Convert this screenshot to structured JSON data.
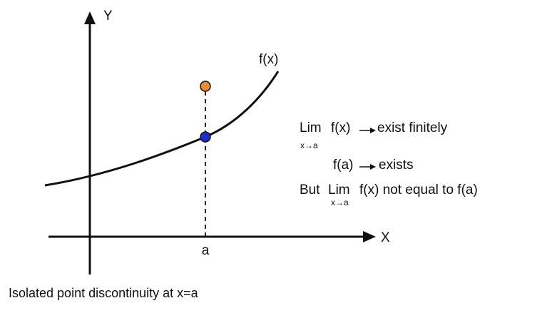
{
  "labels": {
    "y_axis": "Y",
    "x_axis": "X",
    "curve": "f(x)",
    "point": "a"
  },
  "notes": {
    "line1": {
      "lim": "Lim",
      "func": "f(x)",
      "sub": "x→a",
      "result": "exist finitely"
    },
    "line2": {
      "func": "f(a)",
      "result": "exists"
    },
    "line3": {
      "but": "But",
      "lim": "Lim",
      "rest": "f(x) not equal to f(a)",
      "sub": "x→a"
    }
  },
  "caption": "Isolated point discontinuity at x=a"
}
